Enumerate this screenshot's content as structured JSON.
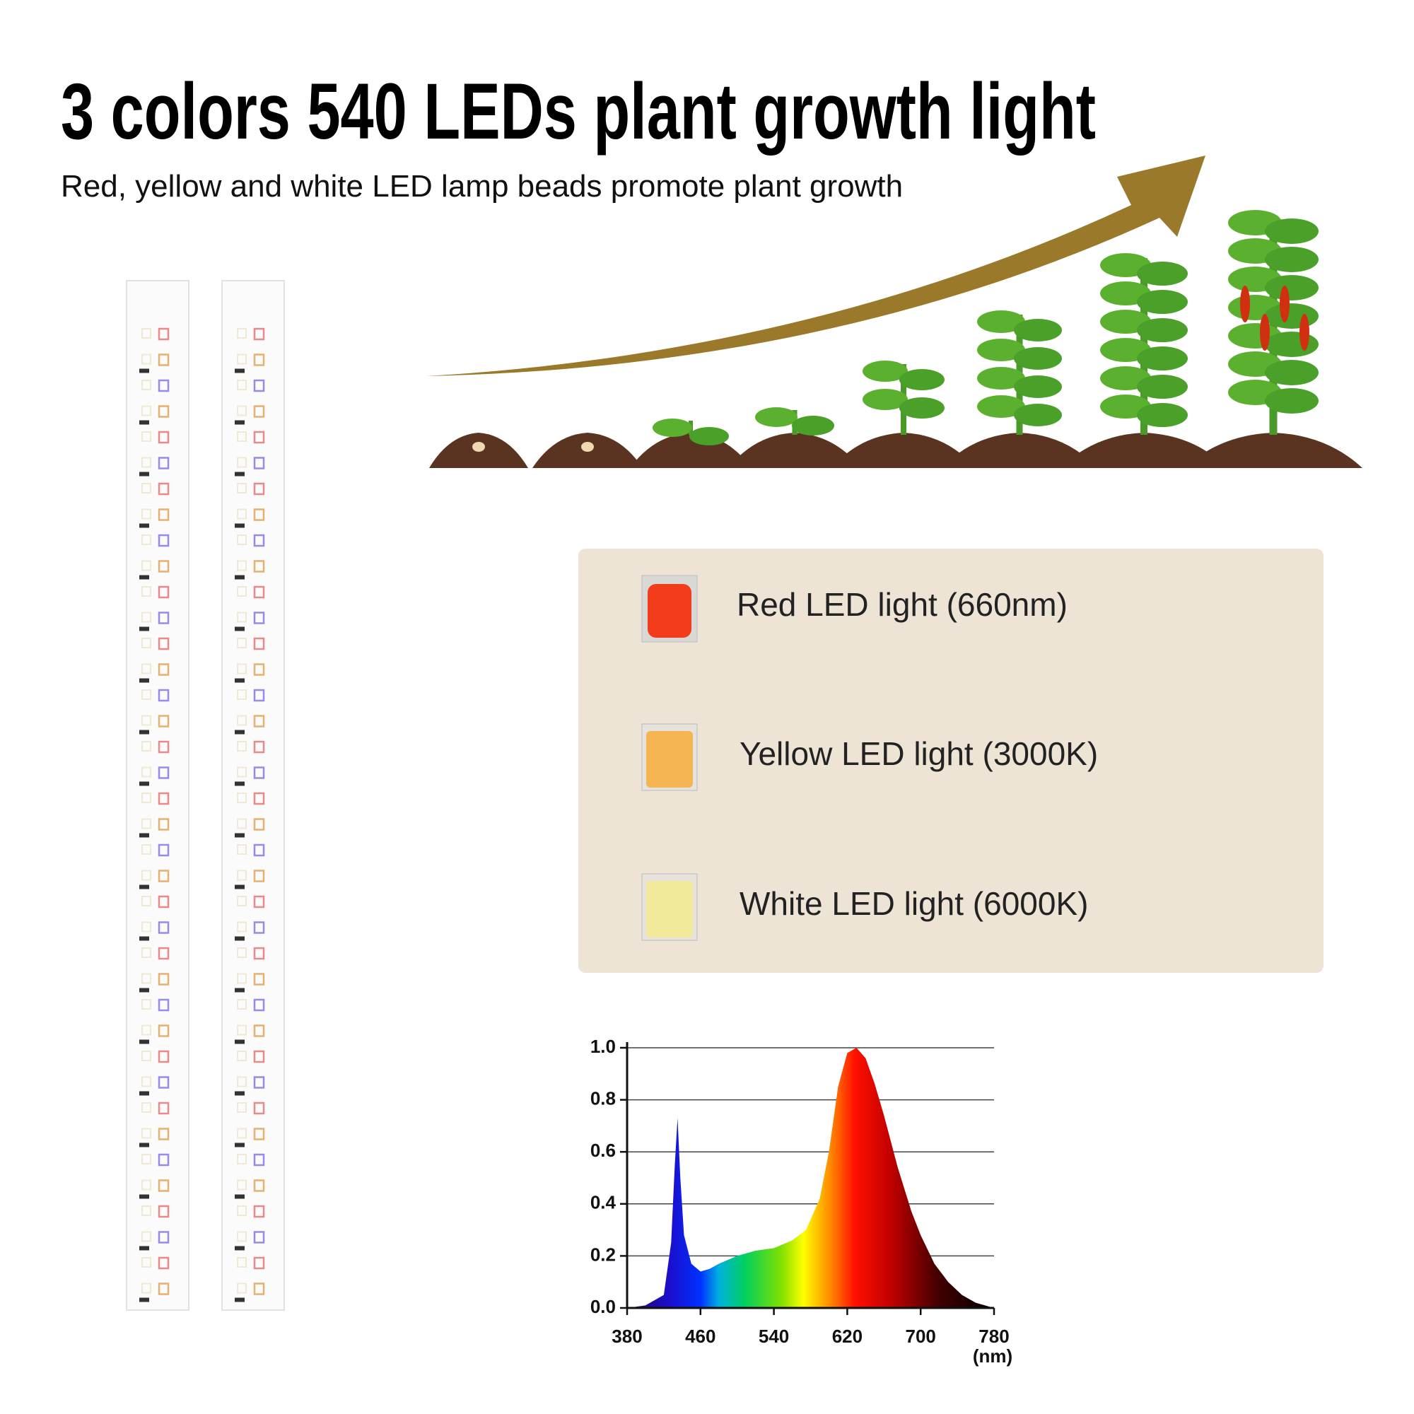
{
  "header": {
    "title": "3 colors 540 LEDs plant growth light",
    "subtitle": "Red, yellow and white LED lamp beads promote plant growth"
  },
  "legend": {
    "items": [
      {
        "label": "Red LED light (660nm)"
      },
      {
        "label": "Yellow LED light (3000K)"
      },
      {
        "label": "White LED light (6000K)"
      }
    ]
  },
  "chart_data": {
    "type": "area",
    "x_unit": "(nm)",
    "x": [
      380,
      400,
      420,
      428,
      432,
      435,
      438,
      442,
      450,
      460,
      470,
      480,
      500,
      520,
      540,
      560,
      575,
      590,
      600,
      610,
      620,
      630,
      640,
      650,
      660,
      675,
      690,
      700,
      715,
      730,
      745,
      760,
      780
    ],
    "values": [
      0,
      0.01,
      0.05,
      0.25,
      0.55,
      0.73,
      0.5,
      0.28,
      0.17,
      0.14,
      0.15,
      0.17,
      0.2,
      0.22,
      0.23,
      0.26,
      0.3,
      0.42,
      0.6,
      0.85,
      0.98,
      1.0,
      0.96,
      0.86,
      0.74,
      0.54,
      0.37,
      0.28,
      0.17,
      0.1,
      0.05,
      0.02,
      0
    ],
    "xlim": [
      380,
      780
    ],
    "ylim": [
      0,
      1
    ],
    "xticks": [
      380,
      460,
      540,
      620,
      700,
      780
    ],
    "yticks": [
      {
        "value": 0,
        "label": "0.0"
      },
      0.2,
      0.4,
      0.6,
      0.8,
      {
        "value": 1,
        "label": "1.0"
      }
    ],
    "grid": true
  }
}
